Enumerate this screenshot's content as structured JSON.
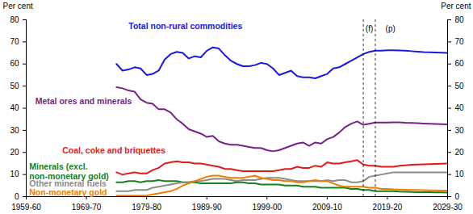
{
  "chart_data": {
    "type": "line",
    "y_label": "Per cent",
    "y2_label": "Per cent",
    "xlim": [
      1959,
      2029
    ],
    "xticks": [
      {
        "value": 1959,
        "label": "1959-60"
      },
      {
        "value": 1969,
        "label": "1969-70"
      },
      {
        "value": 1979,
        "label": "1979-80"
      },
      {
        "value": 1989,
        "label": "1989-90"
      },
      {
        "value": 1999,
        "label": "1999-00"
      },
      {
        "value": 2009,
        "label": "2009-10"
      },
      {
        "value": 2019,
        "label": "2019-20"
      },
      {
        "value": 2029,
        "label": "2029-30"
      }
    ],
    "ylim": [
      0,
      80
    ],
    "yticks": [
      0,
      10,
      20,
      30,
      40,
      50,
      60,
      70,
      80
    ],
    "y2lim": [
      0,
      80
    ],
    "y2ticks": [
      0,
      10,
      20,
      30,
      40,
      50,
      60,
      70,
      80
    ],
    "grid": false,
    "x": [
      1974,
      1975,
      1976,
      1977,
      1978,
      1979,
      1980,
      1981,
      1982,
      1983,
      1984,
      1985,
      1986,
      1987,
      1988,
      1989,
      1990,
      1991,
      1992,
      1993,
      1994,
      1995,
      1996,
      1997,
      1998,
      1999,
      2000,
      2001,
      2002,
      2003,
      2004,
      2005,
      2006,
      2007,
      2008,
      2009,
      2010,
      2011,
      2012,
      2013,
      2014,
      2015,
      2016,
      2017,
      2018,
      2019,
      2020,
      2021,
      2022,
      2023,
      2024,
      2025,
      2026,
      2027,
      2028,
      2029
    ],
    "series": [
      {
        "name": "Total non-rural commodities",
        "color": "#1a1adc",
        "label": {
          "x": 1976,
          "y": 77
        },
        "values": [
          60,
          57,
          57.5,
          58.5,
          58,
          55,
          55.5,
          57,
          62,
          64.5,
          65.5,
          65,
          62.5,
          63.5,
          63,
          66,
          67.5,
          67,
          64,
          61.5,
          60,
          59,
          59,
          59.5,
          60.5,
          60,
          58,
          55,
          56,
          57,
          54.5,
          54,
          54,
          53.5,
          54.5,
          55.5,
          58,
          58.5,
          60,
          61.5,
          63,
          64.5,
          65.5,
          66,
          66,
          66.2,
          66.2,
          66.1,
          66,
          65.8,
          65.6,
          65.4,
          65.3,
          65.2,
          65.1,
          65
        ]
      },
      {
        "name": "Metal ores and minerals",
        "color": "#7b1f8c",
        "label": {
          "x": 1960.5,
          "y": 43
        },
        "values": [
          49.5,
          49,
          48,
          47.5,
          44,
          42.5,
          42,
          39.5,
          39.5,
          38,
          35,
          33,
          30.5,
          29.5,
          28.5,
          27,
          27.5,
          25,
          24,
          23.5,
          23.5,
          23,
          22.5,
          22,
          22,
          21,
          20.5,
          21,
          22,
          23,
          24,
          24.5,
          23,
          24.5,
          24,
          26,
          27,
          29,
          31.5,
          33,
          34,
          32.5,
          33,
          33.5,
          33.5,
          33.5,
          33.6,
          33.6,
          33.4,
          33.3,
          33.2,
          33.1,
          33,
          32.9,
          32.8,
          32.7
        ]
      },
      {
        "name": "Coal, coke and briquettes",
        "color": "#e01b1b",
        "label": {
          "x": 1965,
          "y": 21
        },
        "values": [
          11,
          10,
          10.5,
          11,
          10.5,
          10.5,
          12,
          13,
          15,
          15.5,
          16,
          15.5,
          15.5,
          15,
          15,
          14.5,
          14,
          13.5,
          12.5,
          12.5,
          12,
          11.5,
          11.5,
          11.5,
          11.5,
          11.5,
          11.5,
          12,
          12.5,
          12.5,
          13.5,
          13,
          13,
          14,
          13.5,
          15.5,
          15,
          15,
          15.5,
          16,
          16.5,
          14.5,
          14,
          14,
          13.5,
          13.5,
          13.5,
          14,
          14.2,
          14.4,
          14.5,
          14.6,
          14.7,
          14.8,
          14.9,
          15
        ]
      },
      {
        "name": "Minerals (excl.\nnon-monetary gold)",
        "color": "#17801f",
        "label": {
          "x": 1959.5,
          "y": 11.5
        },
        "values": [
          6.5,
          6.5,
          7,
          7,
          6.5,
          7,
          7,
          7.5,
          7,
          7,
          7,
          6.5,
          6.5,
          6.5,
          6,
          6,
          6,
          6,
          6,
          6,
          6.5,
          6.5,
          6,
          6,
          5.5,
          5.5,
          5.5,
          5.5,
          5,
          5,
          5,
          4.5,
          4.5,
          4.5,
          4,
          4,
          4,
          4,
          4,
          3.5,
          3.5,
          3,
          3,
          2.5,
          2.5,
          2.5,
          2.5,
          2.3,
          2.2,
          2.1,
          2,
          2,
          2,
          1.9,
          1.9,
          1.8
        ]
      },
      {
        "name": "Other mineral fuels",
        "color": "#8c8c8c",
        "label": {
          "x": 1959.5,
          "y": 5.8
        },
        "values": [
          2.5,
          2.5,
          2.5,
          3,
          3,
          3,
          4,
          4.5,
          5,
          5.5,
          6,
          6.5,
          6.5,
          7,
          7,
          7.5,
          8,
          8,
          8,
          7.5,
          7,
          7.5,
          7.5,
          7.5,
          8,
          8.5,
          8.5,
          8.5,
          8,
          7.5,
          7,
          7,
          7,
          7,
          7,
          7.5,
          7,
          7.5,
          7.5,
          6.5,
          6.5,
          7,
          9,
          9.5,
          10,
          10.5,
          11,
          11,
          11,
          11,
          11,
          11,
          11,
          11,
          11,
          11
        ]
      },
      {
        "name": "Non-monetary gold",
        "color": "#f07d00",
        "label": {
          "x": 1959.5,
          "y": 1.8
        },
        "values": [
          0.5,
          0.5,
          0.5,
          0.5,
          0.5,
          0.5,
          1,
          1.5,
          2,
          2.5,
          3.5,
          5,
          6,
          7,
          8,
          9,
          9.5,
          9.5,
          9,
          8.5,
          8.5,
          8.5,
          9,
          9.5,
          8.5,
          8,
          7.5,
          7.5,
          7,
          7,
          6.5,
          6.5,
          7,
          7.5,
          7,
          7,
          6,
          5,
          4.5,
          4.5,
          4.5,
          4.5,
          4,
          4,
          3.5,
          3.5,
          3.3,
          3.2,
          3.1,
          3,
          3,
          2.9,
          2.8,
          2.8,
          2.7,
          2.7
        ]
      }
    ],
    "reference_lines": [
      {
        "x": 2015,
        "line_style": "dashed"
      },
      {
        "x": 2017,
        "line_style": "dashed"
      }
    ],
    "annotations": [
      {
        "text": "(f)",
        "x": 2016,
        "y": 76
      },
      {
        "text": "(p)",
        "x": 2019.5,
        "y": 76
      }
    ]
  }
}
